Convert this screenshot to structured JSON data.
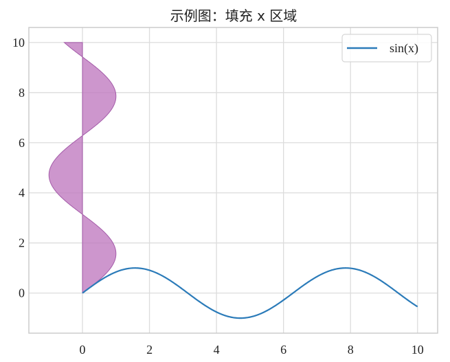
{
  "chart_data": {
    "type": "line",
    "title": "示例图：填充 x 区域",
    "xlabel": "",
    "ylabel": "",
    "xlim": [
      -1.6,
      10.6
    ],
    "ylim": [
      -1.6,
      10.6
    ],
    "xticks": [
      0,
      2,
      4,
      6,
      8,
      10
    ],
    "yticks": [
      0,
      2,
      4,
      6,
      8,
      10
    ],
    "xtick_labels": [
      "0",
      "2",
      "4",
      "6",
      "8",
      "10"
    ],
    "ytick_labels": [
      "0",
      "2",
      "4",
      "6",
      "8",
      "10"
    ],
    "grid": true,
    "legend_position": "top-right",
    "series": [
      {
        "name": "sin(x)",
        "kind": "line",
        "function": "sin(x)",
        "x_range": [
          0,
          10
        ],
        "color": "#2b7bb9"
      },
      {
        "kind": "fill_betweenx",
        "function": "x = sin(y)",
        "y_range": [
          0,
          10
        ],
        "between": "x = 0",
        "color": "#c07cc0",
        "edge_color": "#a35aa8"
      }
    ]
  }
}
